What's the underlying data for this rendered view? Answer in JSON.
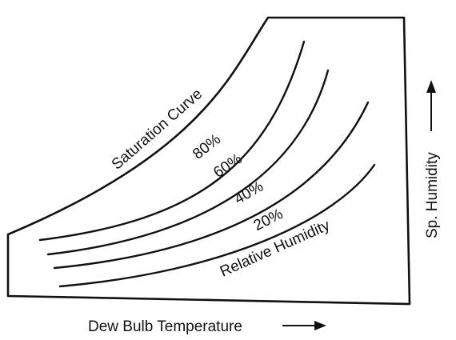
{
  "labels": {
    "saturation_curve": "Saturation Curve",
    "rh_80": "80%",
    "rh_60": "60%",
    "rh_40": "40%",
    "rh_20": "20%",
    "relative_humidity": "Relative Humidity",
    "x_axis": "Dew Bulb Temperature",
    "y_axis": "Sp. Humidity"
  },
  "colors": {
    "ink": "#111111",
    "background": "#ffffff"
  }
}
